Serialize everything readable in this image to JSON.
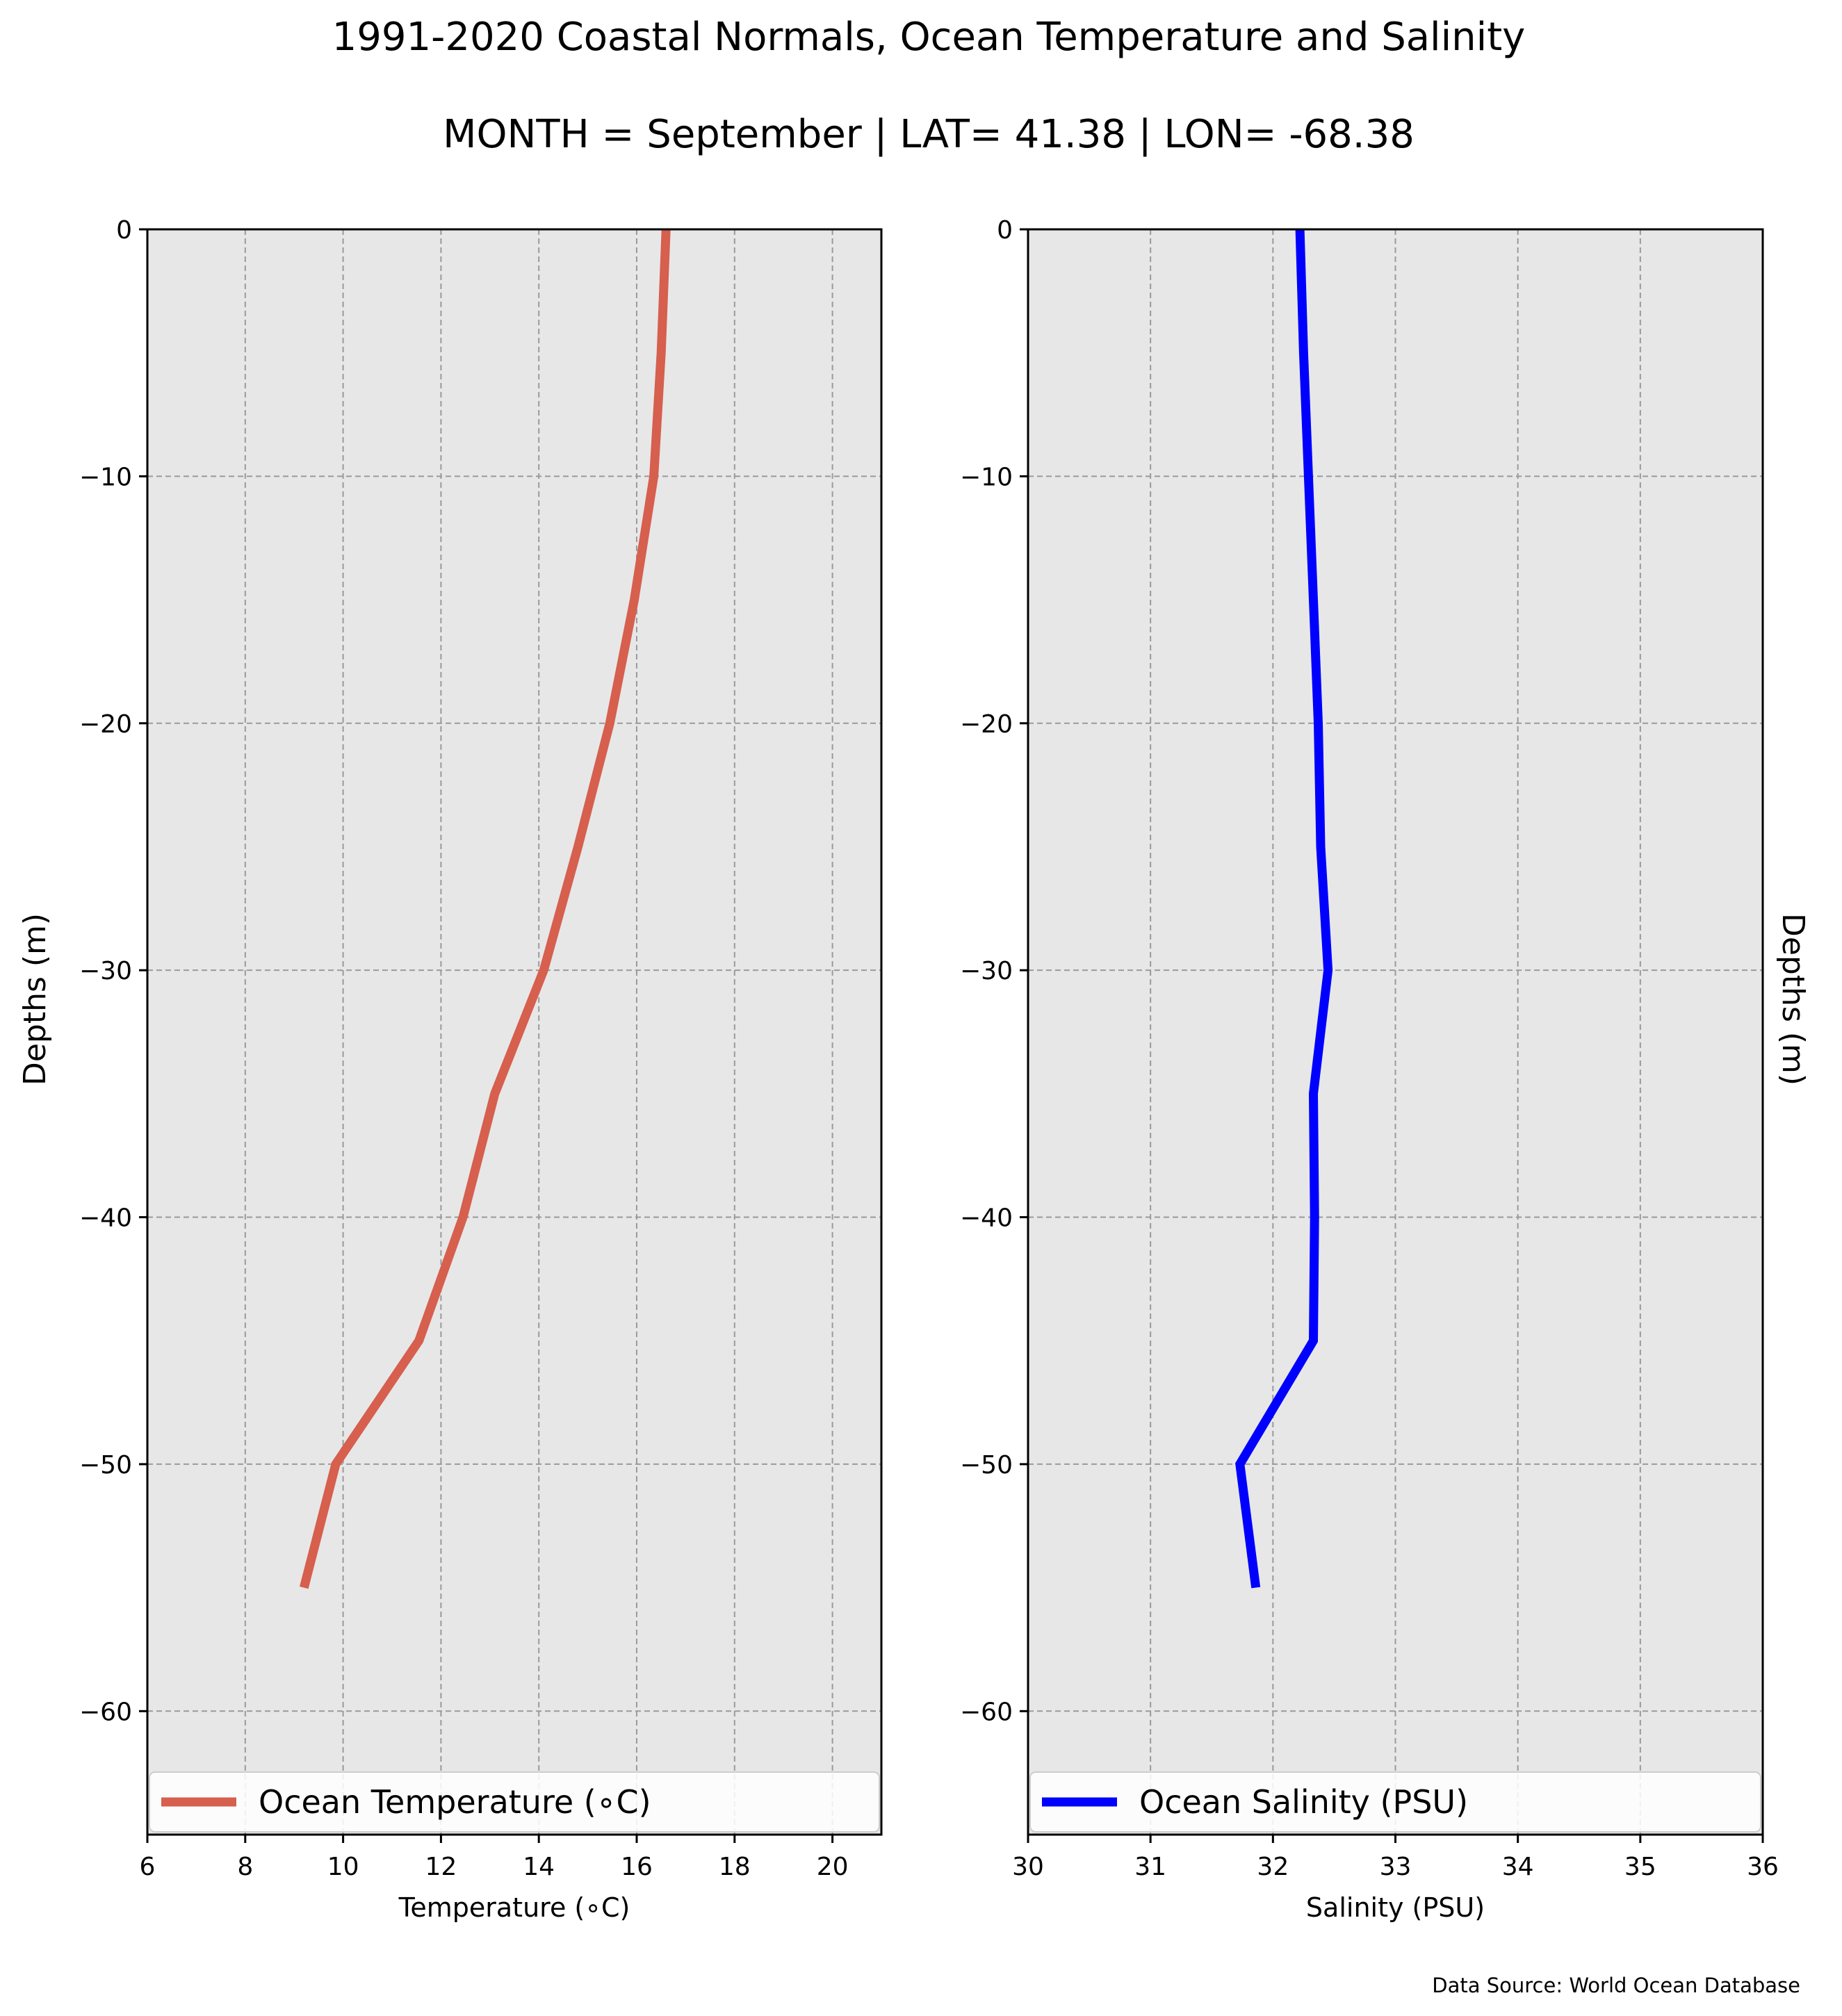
{
  "figure": {
    "title_line1": "1991-2020 Coastal Normals, Ocean Temperature and Salinity",
    "title_line2": "MONTH = September | LAT= 41.38 | LON= -68.38",
    "footer": "Data Source: World Ocean Database"
  },
  "chart_data": [
    {
      "type": "line",
      "xlabel": "Temperature (∘C)",
      "ylabel": "Depths (m)",
      "xlim": [
        6,
        21
      ],
      "ylim": [
        -65,
        0
      ],
      "xticks": [
        6,
        8,
        10,
        12,
        14,
        16,
        18,
        20
      ],
      "yticks": [
        0,
        -10,
        -20,
        -30,
        -40,
        -50,
        -60
      ],
      "xtick_labels": [
        "6",
        "8",
        "10",
        "12",
        "14",
        "16",
        "18",
        "20"
      ],
      "ytick_labels": [
        "0",
        "−10",
        "−20",
        "−30",
        "−40",
        "−50",
        "−60"
      ],
      "grid": true,
      "legend_placement": "lower",
      "series": [
        {
          "name": "Ocean Temperature (∘C)",
          "color": "#d65f4e",
          "x": [
            16.6,
            16.5,
            16.35,
            15.95,
            15.45,
            14.8,
            14.1,
            13.1,
            12.45,
            11.55,
            9.85,
            9.2
          ],
          "y": [
            0,
            -5,
            -10,
            -15,
            -20,
            -25,
            -30,
            -35,
            -40,
            -45,
            -50,
            -55
          ]
        }
      ]
    },
    {
      "type": "line",
      "xlabel": "Salinity (PSU)",
      "ylabel": "Depths (m)",
      "xlim": [
        30,
        36
      ],
      "ylim": [
        -65,
        0
      ],
      "xticks": [
        30,
        31,
        32,
        33,
        34,
        35,
        36
      ],
      "yticks": [
        0,
        -10,
        -20,
        -30,
        -40,
        -50,
        -60
      ],
      "xtick_labels": [
        "30",
        "31",
        "32",
        "33",
        "34",
        "35",
        "36"
      ],
      "ytick_labels": [
        "0",
        "−10",
        "−20",
        "−30",
        "−40",
        "−50",
        "−60"
      ],
      "grid": true,
      "legend_placement": "lower",
      "series": [
        {
          "name": "Ocean Salinity (PSU)",
          "color": "#0000ff",
          "x": [
            32.22,
            32.25,
            32.29,
            32.33,
            32.37,
            32.39,
            32.45,
            32.33,
            32.34,
            32.33,
            31.73,
            31.86
          ],
          "y": [
            0,
            -5,
            -10,
            -15,
            -20,
            -25,
            -30,
            -35,
            -40,
            -45,
            -50,
            -55
          ]
        }
      ]
    }
  ]
}
